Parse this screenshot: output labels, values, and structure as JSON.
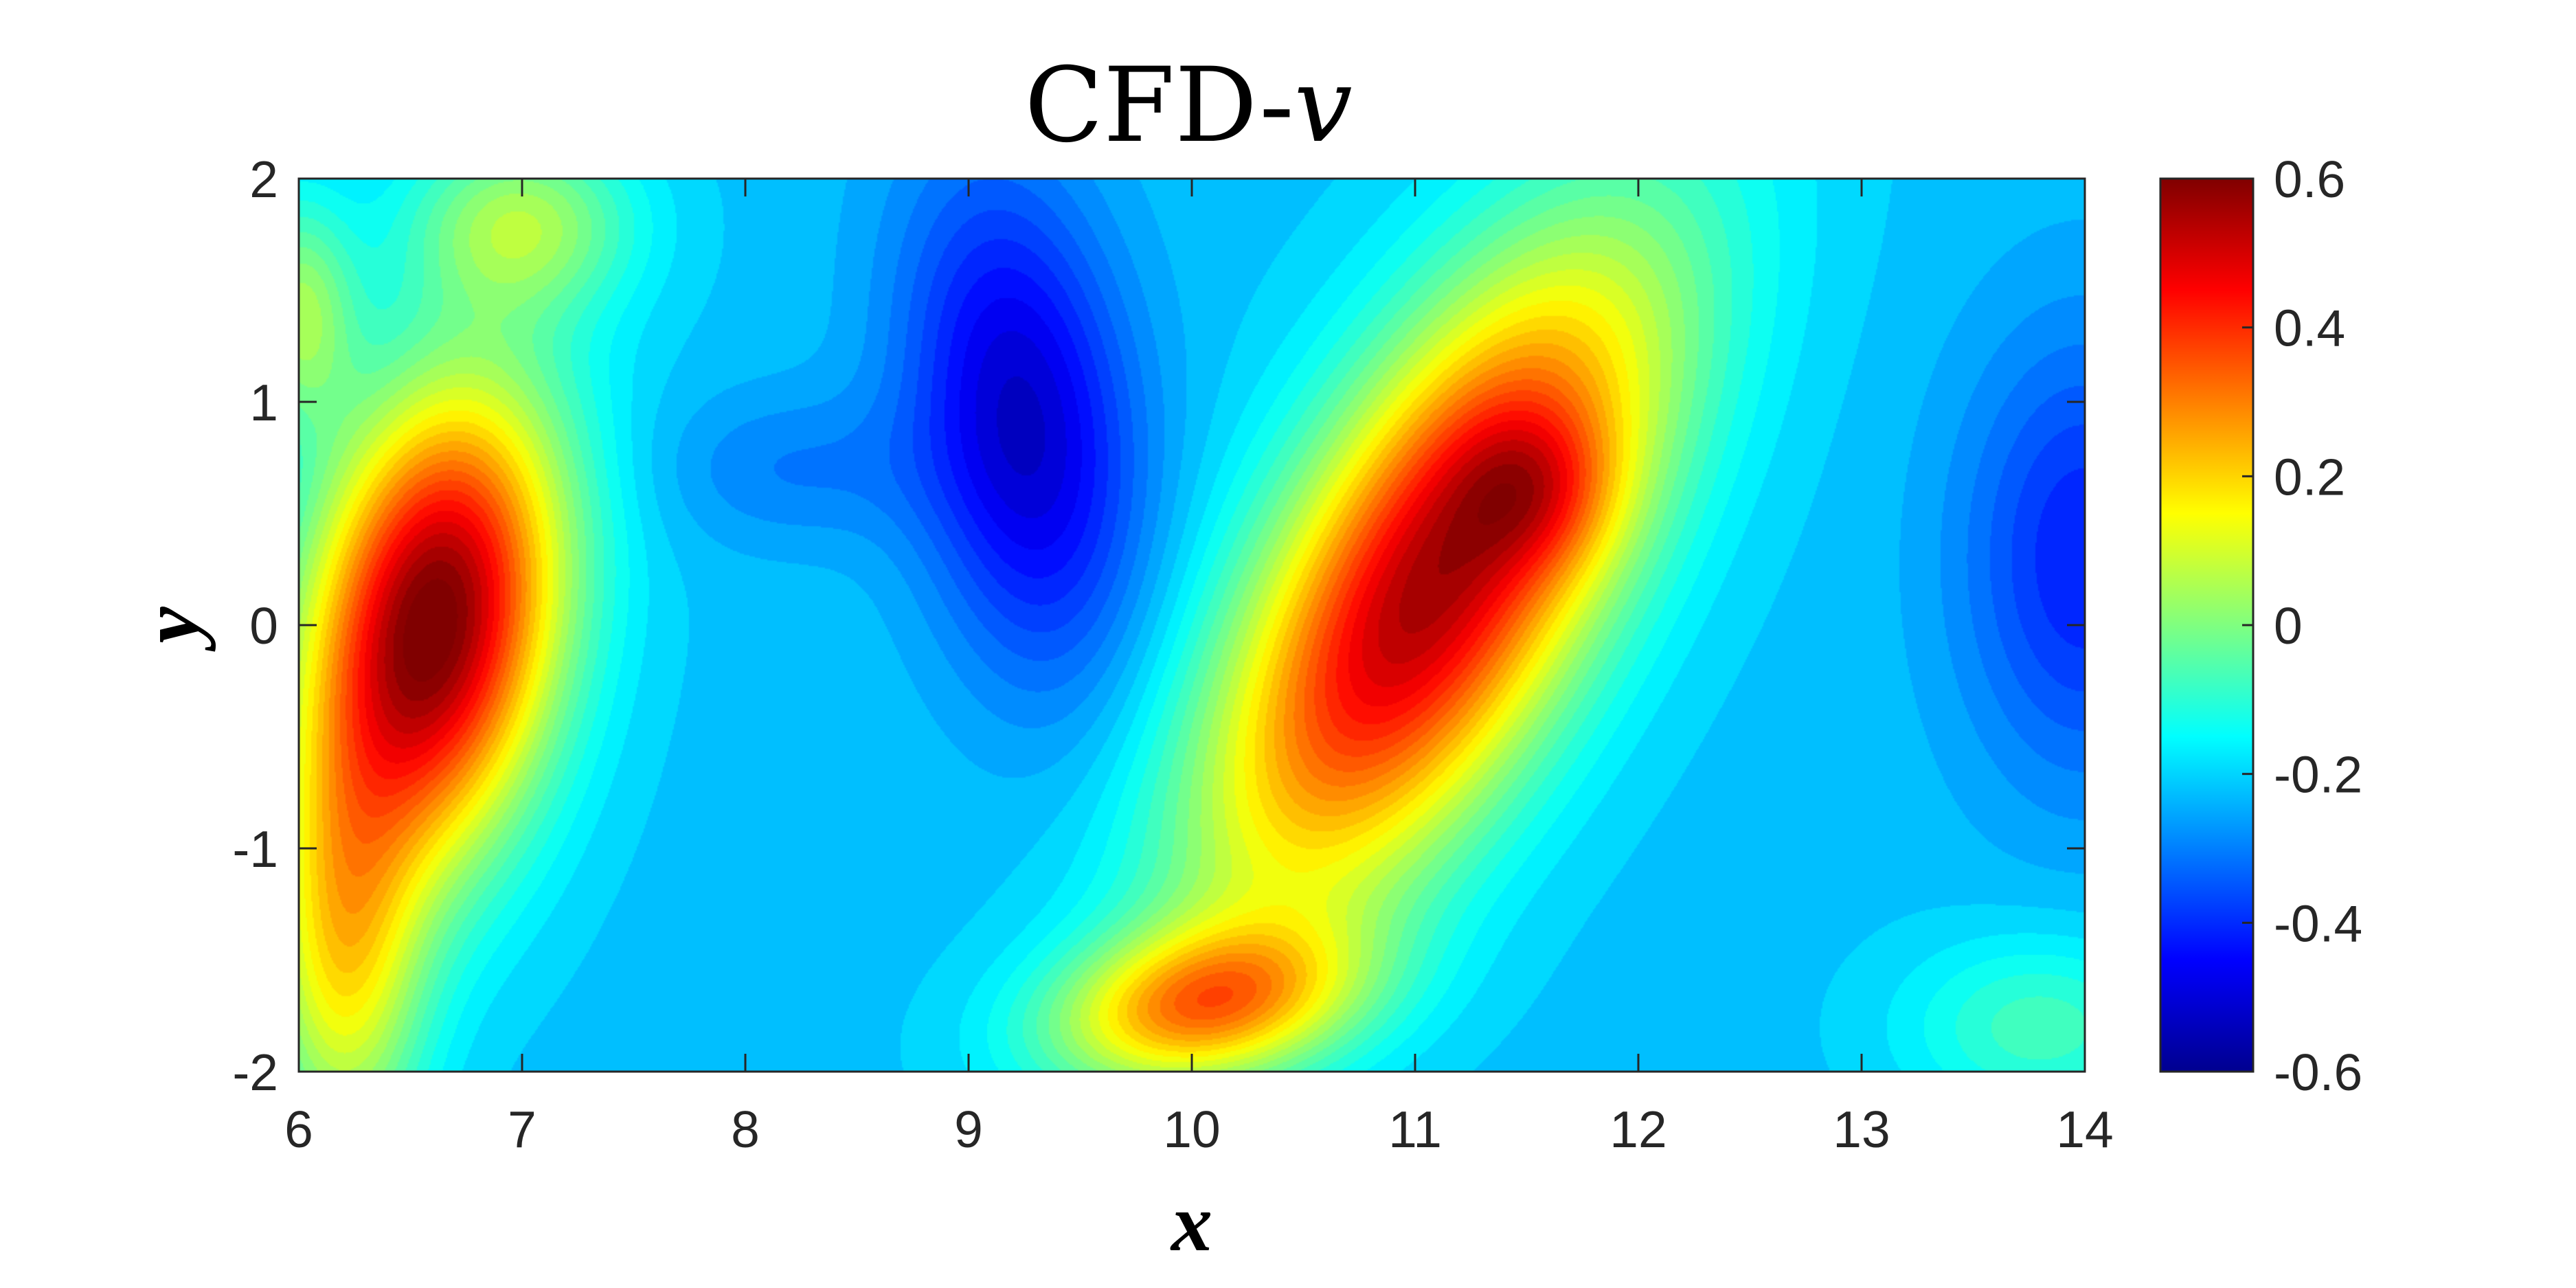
{
  "chart_data": {
    "type": "heatmap",
    "title_main": "CFD-",
    "title_var": "v",
    "xlabel": "x",
    "ylabel": "y",
    "xlim": [
      6,
      14
    ],
    "ylim": [
      -2,
      2
    ],
    "xticks": [
      6,
      7,
      8,
      9,
      10,
      11,
      12,
      13,
      14
    ],
    "xtick_labels": [
      "6",
      "7",
      "8",
      "9",
      "10",
      "11",
      "12",
      "13",
      "14"
    ],
    "yticks": [
      2,
      1,
      0,
      -1,
      -2
    ],
    "ytick_labels": [
      "2",
      "1",
      "0",
      "-1",
      "-2"
    ],
    "colorbar": {
      "colormap": "jet",
      "clim": [
        -0.6,
        0.6
      ],
      "ticks": [
        0.6,
        0.4,
        0.2,
        0,
        -0.2,
        -0.4,
        -0.6
      ],
      "tick_labels": [
        "0.6",
        "0.4",
        "0.2",
        "0",
        "-0.2",
        "-0.4",
        "-0.6"
      ]
    },
    "field_features": [
      {
        "x": 6.6,
        "y": 0.0,
        "value": 0.6
      },
      {
        "x": 9.4,
        "y": 1.0,
        "value": -0.4
      },
      {
        "x": 11.5,
        "y": 0.6,
        "value": 0.5
      },
      {
        "x": 14.0,
        "y": 0.3,
        "value": -0.35
      }
    ]
  }
}
